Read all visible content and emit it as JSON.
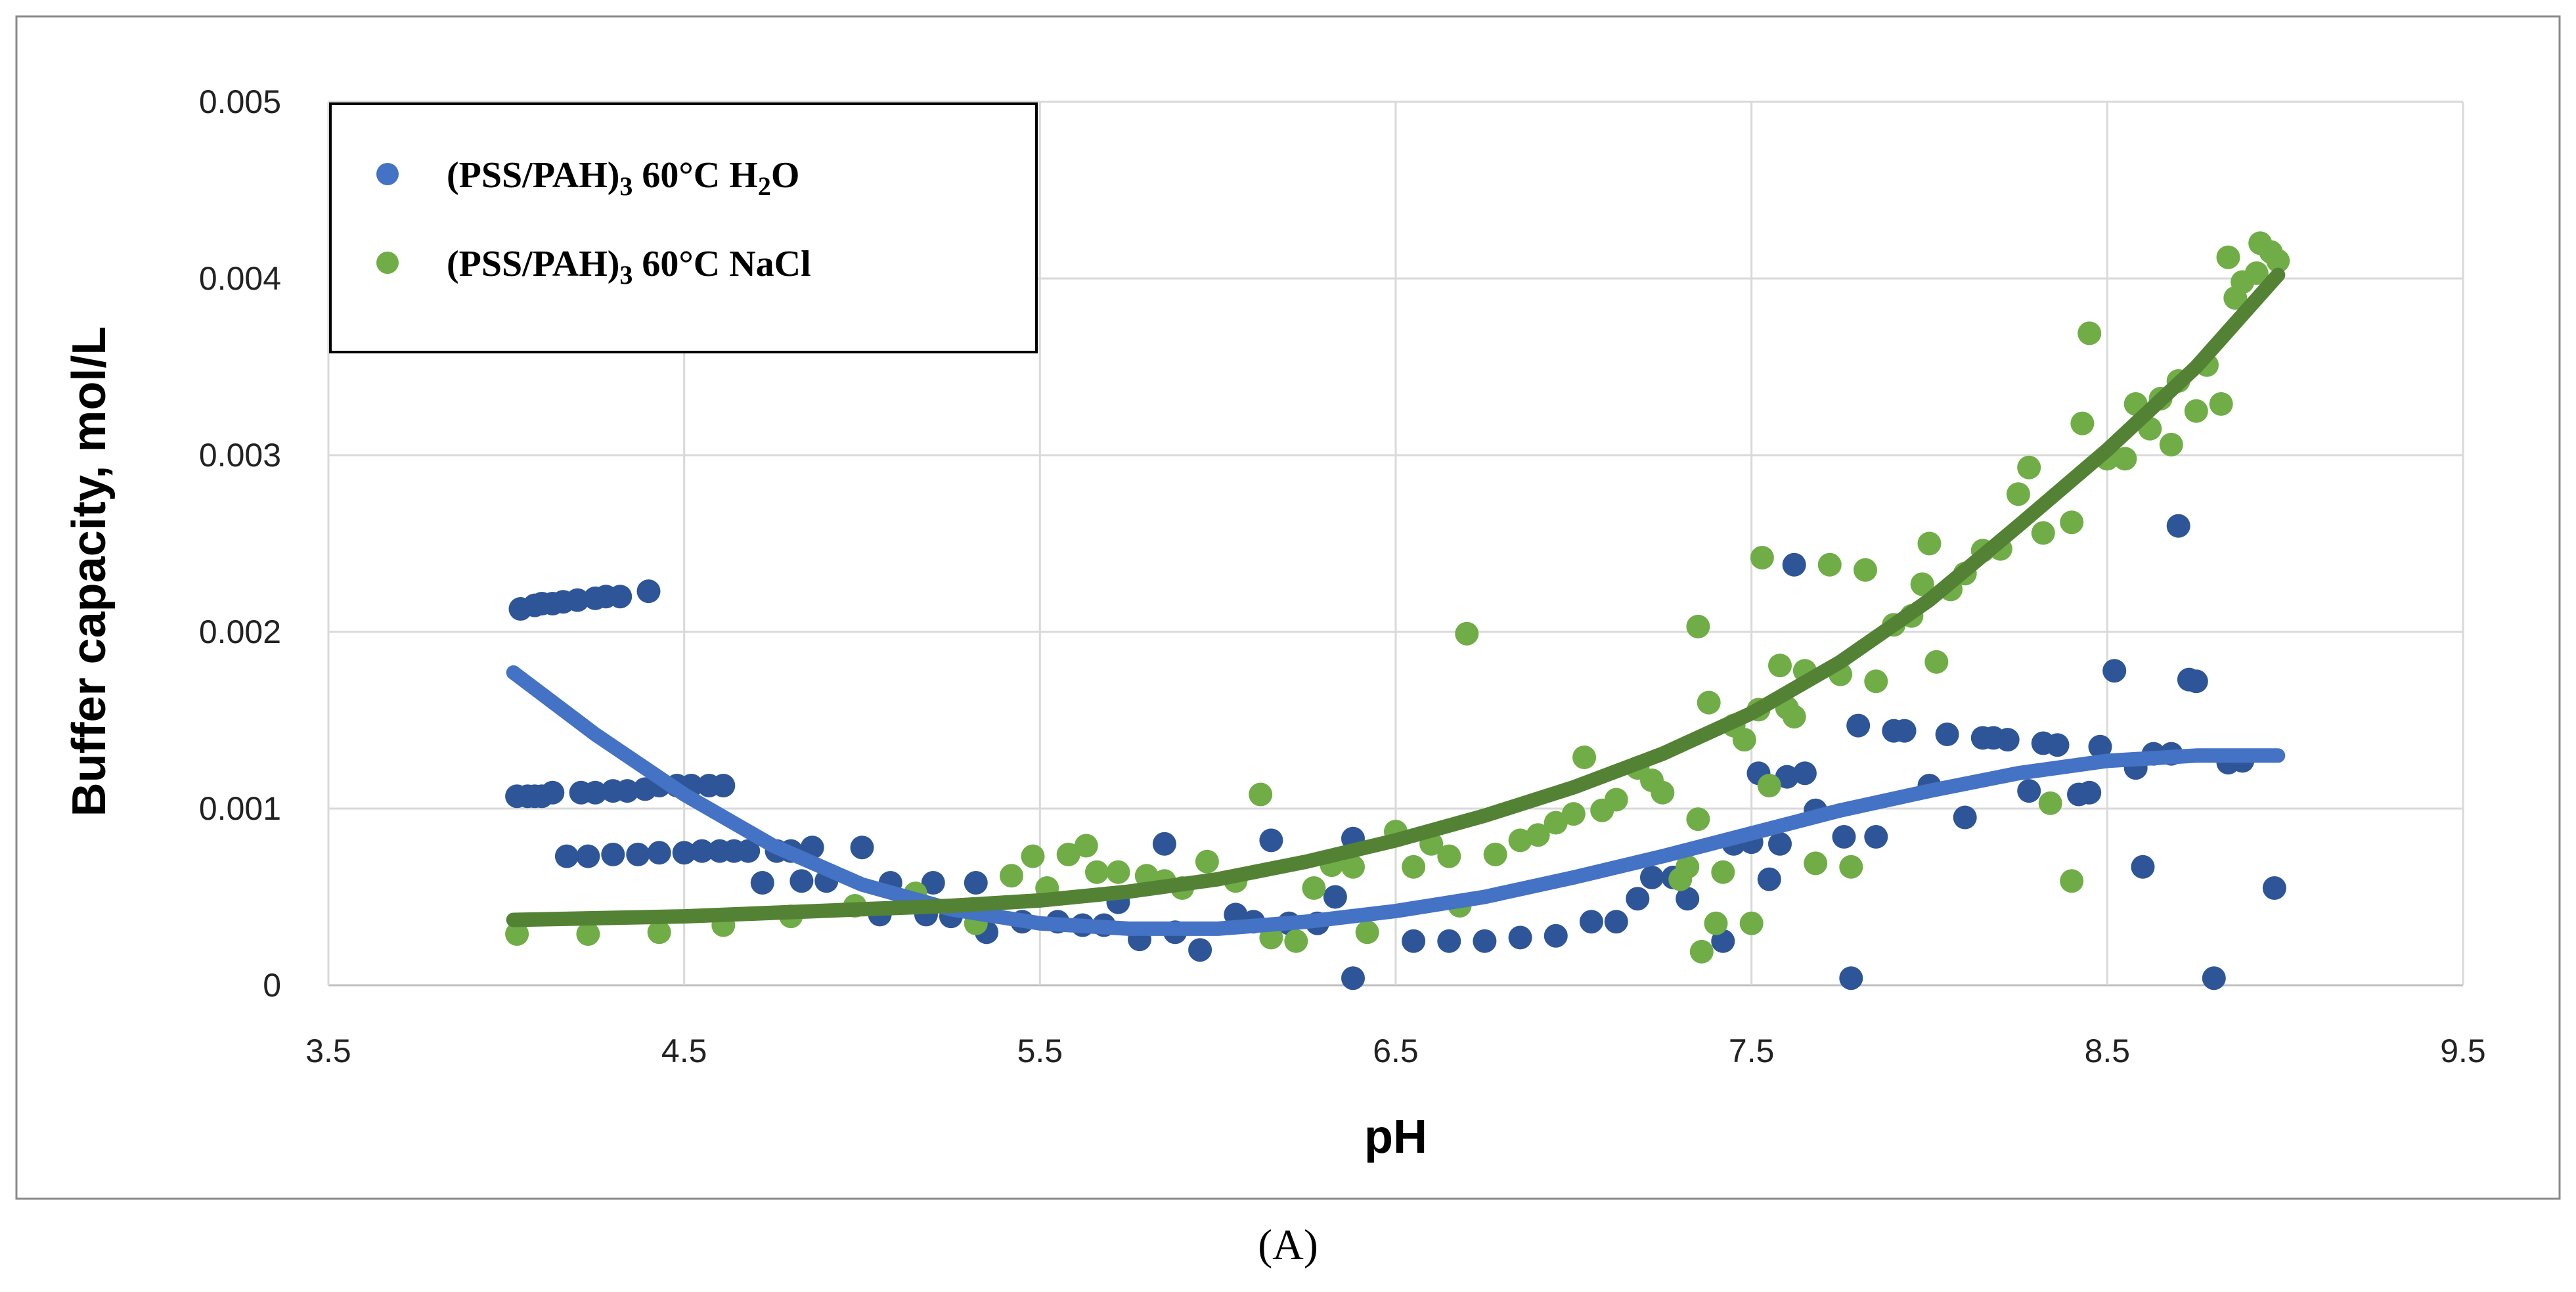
{
  "chart_data": {
    "type": "scatter",
    "title": "",
    "xlabel": "pH",
    "ylabel": "Buffer capacity, mol/L",
    "xlim": [
      3.5,
      9.5
    ],
    "ylim": [
      0,
      0.005
    ],
    "x_ticks": [
      3.5,
      4.5,
      5.5,
      6.5,
      7.5,
      8.5,
      9.5
    ],
    "x_tick_labels": [
      "3.5",
      "4.5",
      "5.5",
      "6.5",
      "7.5",
      "8.5",
      "9.5"
    ],
    "y_ticks": [
      0,
      0.001,
      0.002,
      0.003,
      0.004,
      0.005
    ],
    "y_tick_labels": [
      "0",
      "0.001",
      "0.002",
      "0.003",
      "0.004",
      "0.005"
    ],
    "grid": true,
    "legend_position": "top-left",
    "caption": "(A)",
    "series": [
      {
        "name_parts": [
          "(PSS/PAH)",
          "3",
          " 60°C H",
          "2",
          "O"
        ],
        "color": "#2E5597",
        "trend_color": "#4472C4",
        "points": [
          [
            4.03,
            0.00107
          ],
          [
            4.06,
            0.00107
          ],
          [
            4.08,
            0.00107
          ],
          [
            4.1,
            0.00107
          ],
          [
            4.13,
            0.00109
          ],
          [
            4.21,
            0.00109
          ],
          [
            4.25,
            0.00109
          ],
          [
            4.3,
            0.0011
          ],
          [
            4.34,
            0.0011
          ],
          [
            4.39,
            0.00111
          ],
          [
            4.43,
            0.00113
          ],
          [
            4.48,
            0.00113
          ],
          [
            4.52,
            0.00113
          ],
          [
            4.57,
            0.00113
          ],
          [
            4.61,
            0.00113
          ],
          [
            4.04,
            0.00213
          ],
          [
            4.08,
            0.00215
          ],
          [
            4.1,
            0.00216
          ],
          [
            4.13,
            0.00216
          ],
          [
            4.16,
            0.00217
          ],
          [
            4.2,
            0.00218
          ],
          [
            4.25,
            0.00219
          ],
          [
            4.28,
            0.0022
          ],
          [
            4.32,
            0.0022
          ],
          [
            4.4,
            0.00223
          ],
          [
            4.17,
            0.00073
          ],
          [
            4.23,
            0.00073
          ],
          [
            4.3,
            0.00074
          ],
          [
            4.37,
            0.00074
          ],
          [
            4.43,
            0.00075
          ],
          [
            4.5,
            0.00075
          ],
          [
            4.55,
            0.00076
          ],
          [
            4.6,
            0.00076
          ],
          [
            4.64,
            0.00076
          ],
          [
            4.68,
            0.00076
          ],
          [
            4.72,
            0.00058
          ],
          [
            4.76,
            0.00076
          ],
          [
            4.8,
            0.00076
          ],
          [
            4.83,
            0.00059
          ],
          [
            4.86,
            0.00078
          ],
          [
            4.9,
            0.00059
          ],
          [
            5.0,
            0.00078
          ],
          [
            5.08,
            0.00058
          ],
          [
            5.2,
            0.00058
          ],
          [
            5.32,
            0.00058
          ],
          [
            5.05,
            0.0004
          ],
          [
            5.18,
            0.0004
          ],
          [
            5.25,
            0.00039
          ],
          [
            5.35,
            0.0003
          ],
          [
            5.45,
            0.00036
          ],
          [
            5.55,
            0.00036
          ],
          [
            5.62,
            0.00034
          ],
          [
            5.68,
            0.00034
          ],
          [
            5.72,
            0.00047
          ],
          [
            5.78,
            0.00026
          ],
          [
            5.85,
            0.0008
          ],
          [
            5.88,
            0.0003
          ],
          [
            5.95,
            0.0002
          ],
          [
            6.05,
            0.0004
          ],
          [
            6.1,
            0.00036
          ],
          [
            6.15,
            0.00082
          ],
          [
            6.2,
            0.00035
          ],
          [
            6.28,
            0.00035
          ],
          [
            6.33,
            0.0005
          ],
          [
            6.38,
            0.00083
          ],
          [
            6.38,
            4e-05
          ],
          [
            6.55,
            0.00025
          ],
          [
            6.65,
            0.00025
          ],
          [
            6.75,
            0.00025
          ],
          [
            6.85,
            0.00027
          ],
          [
            6.95,
            0.00028
          ],
          [
            7.05,
            0.00036
          ],
          [
            7.12,
            0.00036
          ],
          [
            7.18,
            0.00049
          ],
          [
            7.22,
            0.00061
          ],
          [
            7.28,
            0.00061
          ],
          [
            7.32,
            0.00049
          ],
          [
            7.42,
            0.00025
          ],
          [
            7.45,
            0.0008
          ],
          [
            7.5,
            0.00081
          ],
          [
            7.52,
            0.0012
          ],
          [
            7.55,
            0.0006
          ],
          [
            7.58,
            0.0008
          ],
          [
            7.6,
            0.00118
          ],
          [
            7.65,
            0.0012
          ],
          [
            7.62,
            0.00238
          ],
          [
            7.68,
            0.00099
          ],
          [
            7.76,
            0.00084
          ],
          [
            7.8,
            0.00147
          ],
          [
            7.85,
            0.00084
          ],
          [
            7.9,
            0.00144
          ],
          [
            7.93,
            0.00144
          ],
          [
            8.0,
            0.00113
          ],
          [
            8.05,
            0.00142
          ],
          [
            8.1,
            0.00095
          ],
          [
            8.15,
            0.0014
          ],
          [
            8.18,
            0.0014
          ],
          [
            8.22,
            0.00139
          ],
          [
            8.28,
            0.0011
          ],
          [
            8.32,
            0.00137
          ],
          [
            8.36,
            0.00136
          ],
          [
            8.42,
            0.00108
          ],
          [
            8.45,
            0.00109
          ],
          [
            8.48,
            0.00135
          ],
          [
            8.52,
            0.00178
          ],
          [
            8.58,
            0.00123
          ],
          [
            8.6,
            0.00067
          ],
          [
            8.63,
            0.00131
          ],
          [
            8.68,
            0.00131
          ],
          [
            8.7,
            0.0026
          ],
          [
            8.73,
            0.00173
          ],
          [
            8.75,
            0.00172
          ],
          [
            7.78,
            4e-05
          ],
          [
            8.8,
            4e-05
          ],
          [
            8.84,
            0.00126
          ],
          [
            8.88,
            0.00127
          ],
          [
            8.97,
            0.00055
          ]
        ],
        "trend": [
          [
            4.02,
            0.00177
          ],
          [
            4.25,
            0.00142
          ],
          [
            4.5,
            0.00108
          ],
          [
            4.75,
            0.00079
          ],
          [
            5.0,
            0.00057
          ],
          [
            5.25,
            0.00043
          ],
          [
            5.5,
            0.00035
          ],
          [
            5.75,
            0.00032
          ],
          [
            6.0,
            0.00032
          ],
          [
            6.25,
            0.00036
          ],
          [
            6.5,
            0.00042
          ],
          [
            6.75,
            0.0005
          ],
          [
            7.0,
            0.00061
          ],
          [
            7.25,
            0.00073
          ],
          [
            7.5,
            0.00086
          ],
          [
            7.75,
            0.00099
          ],
          [
            8.0,
            0.0011
          ],
          [
            8.25,
            0.0012
          ],
          [
            8.5,
            0.00127
          ],
          [
            8.75,
            0.0013
          ],
          [
            8.98,
            0.0013
          ]
        ]
      },
      {
        "name_parts": [
          "(PSS/PAH)",
          "3",
          " 60°C NaCl",
          "",
          ""
        ],
        "color": "#70AD47",
        "trend_color": "#548235",
        "points": [
          [
            4.03,
            0.00029
          ],
          [
            4.23,
            0.00029
          ],
          [
            4.43,
            0.0003
          ],
          [
            4.61,
            0.00034
          ],
          [
            4.8,
            0.00039
          ],
          [
            4.98,
            0.00045
          ],
          [
            5.15,
            0.00052
          ],
          [
            5.32,
            0.00035
          ],
          [
            5.42,
            0.00062
          ],
          [
            5.48,
            0.00073
          ],
          [
            5.52,
            0.00055
          ],
          [
            5.58,
            0.00074
          ],
          [
            5.63,
            0.00079
          ],
          [
            5.66,
            0.00064
          ],
          [
            5.72,
            0.00064
          ],
          [
            5.8,
            0.00062
          ],
          [
            5.85,
            0.00059
          ],
          [
            5.9,
            0.00055
          ],
          [
            5.97,
            0.0007
          ],
          [
            6.05,
            0.00059
          ],
          [
            6.12,
            0.00108
          ],
          [
            6.15,
            0.00027
          ],
          [
            6.22,
            0.00025
          ],
          [
            6.27,
            0.00055
          ],
          [
            6.32,
            0.00068
          ],
          [
            6.38,
            0.00067
          ],
          [
            6.42,
            0.0003
          ],
          [
            6.5,
            0.00087
          ],
          [
            6.55,
            0.00067
          ],
          [
            6.6,
            0.0008
          ],
          [
            6.65,
            0.00073
          ],
          [
            6.7,
            0.00199
          ],
          [
            6.68,
            0.00045
          ],
          [
            6.78,
            0.00074
          ],
          [
            6.85,
            0.00082
          ],
          [
            6.9,
            0.00085
          ],
          [
            6.95,
            0.00092
          ],
          [
            7.0,
            0.00097
          ],
          [
            7.03,
            0.00129
          ],
          [
            7.08,
            0.00099
          ],
          [
            7.12,
            0.00105
          ],
          [
            7.18,
            0.00123
          ],
          [
            7.22,
            0.00116
          ],
          [
            7.25,
            0.00109
          ],
          [
            7.3,
            0.0006
          ],
          [
            7.32,
            0.00067
          ],
          [
            7.35,
            0.00094
          ],
          [
            7.35,
            0.00203
          ],
          [
            7.38,
            0.0016
          ],
          [
            7.4,
            0.00035
          ],
          [
            7.36,
            0.00019
          ],
          [
            7.42,
            0.00064
          ],
          [
            7.45,
            0.00147
          ],
          [
            7.48,
            0.00139
          ],
          [
            7.5,
            0.00035
          ],
          [
            7.52,
            0.00156
          ],
          [
            7.53,
            0.00242
          ],
          [
            7.55,
            0.00113
          ],
          [
            7.58,
            0.00181
          ],
          [
            7.6,
            0.00157
          ],
          [
            7.62,
            0.00152
          ],
          [
            7.65,
            0.00178
          ],
          [
            7.68,
            0.00069
          ],
          [
            7.72,
            0.00238
          ],
          [
            7.75,
            0.00176
          ],
          [
            7.78,
            0.00067
          ],
          [
            7.82,
            0.00235
          ],
          [
            7.85,
            0.00172
          ],
          [
            7.9,
            0.00204
          ],
          [
            7.95,
            0.00209
          ],
          [
            7.98,
            0.00227
          ],
          [
            8.0,
            0.0025
          ],
          [
            8.02,
            0.00183
          ],
          [
            8.06,
            0.00224
          ],
          [
            8.1,
            0.00233
          ],
          [
            8.15,
            0.00246
          ],
          [
            8.2,
            0.00247
          ],
          [
            8.25,
            0.00278
          ],
          [
            8.28,
            0.00293
          ],
          [
            8.32,
            0.00256
          ],
          [
            8.34,
            0.00103
          ],
          [
            8.4,
            0.00262
          ],
          [
            8.4,
            0.00059
          ],
          [
            8.43,
            0.00318
          ],
          [
            8.45,
            0.00369
          ],
          [
            8.5,
            0.00298
          ],
          [
            8.55,
            0.00298
          ],
          [
            8.58,
            0.00329
          ],
          [
            8.62,
            0.00315
          ],
          [
            8.65,
            0.00332
          ],
          [
            8.68,
            0.00306
          ],
          [
            8.7,
            0.00342
          ],
          [
            8.75,
            0.00325
          ],
          [
            8.78,
            0.00351
          ],
          [
            8.82,
            0.00329
          ],
          [
            8.84,
            0.00412
          ],
          [
            8.86,
            0.00389
          ],
          [
            8.88,
            0.00398
          ],
          [
            8.92,
            0.00403
          ],
          [
            8.93,
            0.0042
          ],
          [
            8.96,
            0.00415
          ],
          [
            8.98,
            0.0041
          ]
        ],
        "trend": [
          [
            4.02,
            0.00037
          ],
          [
            4.5,
            0.00039
          ],
          [
            5.0,
            0.00043
          ],
          [
            5.25,
            0.00045
          ],
          [
            5.5,
            0.00048
          ],
          [
            5.75,
            0.00053
          ],
          [
            6.0,
            0.0006
          ],
          [
            6.25,
            0.0007
          ],
          [
            6.5,
            0.00082
          ],
          [
            6.75,
            0.00096
          ],
          [
            7.0,
            0.00112
          ],
          [
            7.25,
            0.00131
          ],
          [
            7.5,
            0.00154
          ],
          [
            7.75,
            0.00183
          ],
          [
            8.0,
            0.00218
          ],
          [
            8.25,
            0.0026
          ],
          [
            8.5,
            0.00303
          ],
          [
            8.75,
            0.0035
          ],
          [
            8.98,
            0.00402
          ]
        ]
      }
    ]
  }
}
